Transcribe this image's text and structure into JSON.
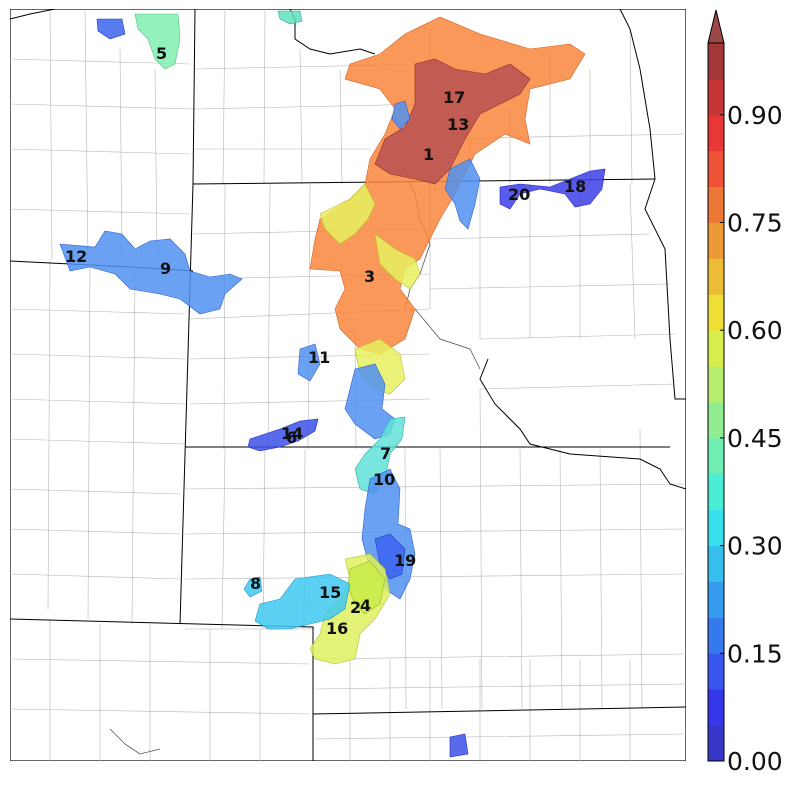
{
  "map": {
    "regions": [
      {
        "id": "1",
        "value": 0.93
      },
      {
        "id": "2",
        "value": 0.58
      },
      {
        "id": "3",
        "value": 0.78
      },
      {
        "id": "4",
        "value": 0.58
      },
      {
        "id": "5",
        "value": 0.45
      },
      {
        "id": "6",
        "value": 0.3
      },
      {
        "id": "7",
        "value": 0.38
      },
      {
        "id": "8",
        "value": 0.33
      },
      {
        "id": "9",
        "value": 0.2
      },
      {
        "id": "10",
        "value": 0.38
      },
      {
        "id": "11",
        "value": 0.2
      },
      {
        "id": "12",
        "value": 0.2
      },
      {
        "id": "13",
        "value": 0.93
      },
      {
        "id": "14",
        "value": 0.12
      },
      {
        "id": "15",
        "value": 0.33
      },
      {
        "id": "16",
        "value": 0.58
      },
      {
        "id": "17",
        "value": 0.93
      },
      {
        "id": "18",
        "value": 0.12
      },
      {
        "id": "19",
        "value": 0.2
      },
      {
        "id": "20",
        "value": 0.12
      }
    ]
  },
  "colorbar": {
    "ticks": [
      "0.00",
      "0.15",
      "0.30",
      "0.45",
      "0.60",
      "0.75",
      "0.90"
    ],
    "range": [
      0,
      1.0
    ],
    "extend": "max",
    "colormap": "jet"
  }
}
